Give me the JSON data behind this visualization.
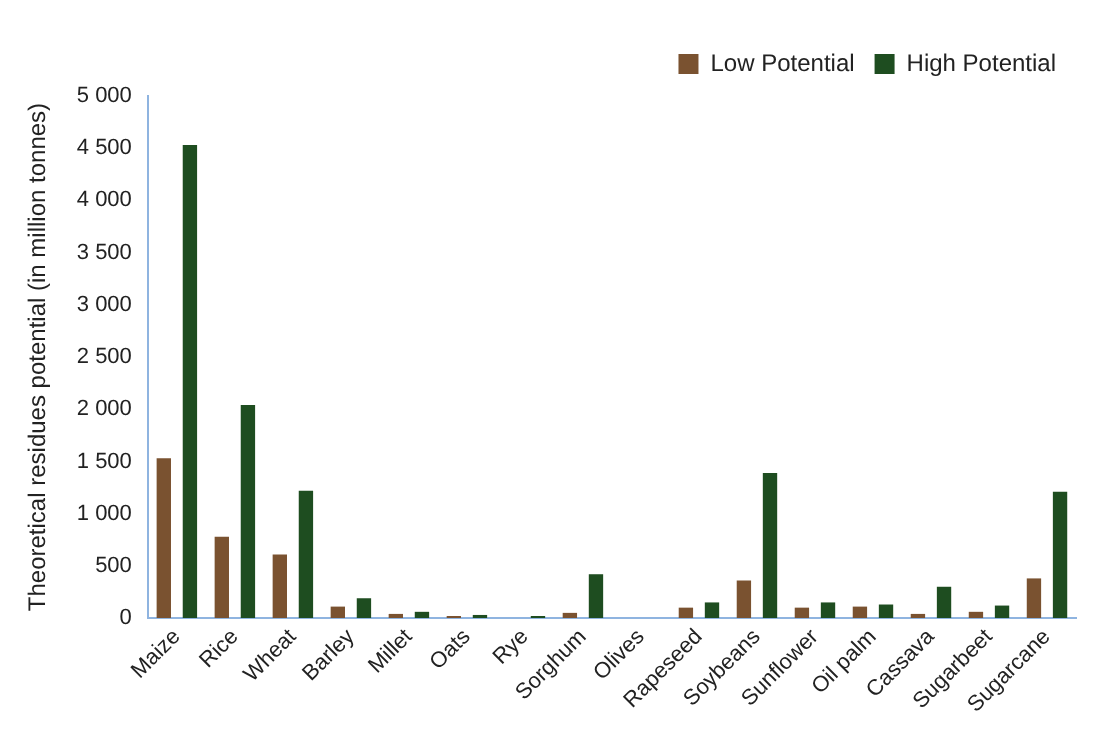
{
  "chart_data": {
    "type": "bar",
    "ylabel": "Theoretical residues potential (in million tonnes)",
    "categories": [
      "Maize",
      "Rice",
      "Wheat",
      "Barley",
      "Millet",
      "Oats",
      "Rye",
      "Sorghum",
      "Olives",
      "Rapeseed",
      "Soybeans",
      "Sunflower",
      "Oil palm",
      "Cassava",
      "Sugarbeet",
      "Sugarcane"
    ],
    "series": [
      {
        "name": "Low Potential",
        "color": "#7a5230",
        "values": [
          1530,
          780,
          610,
          110,
          40,
          20,
          null,
          50,
          0,
          100,
          360,
          100,
          110,
          40,
          60,
          380
        ]
      },
      {
        "name": "High Potential",
        "color": "#1e4d20",
        "values": [
          4530,
          2040,
          1220,
          190,
          60,
          30,
          20,
          420,
          0,
          150,
          1390,
          150,
          130,
          300,
          120,
          1210
        ]
      }
    ],
    "ylim": [
      0,
      5000
    ],
    "yticks": [
      0,
      {
        "value": 500,
        "label": "500"
      },
      {
        "value": 1000,
        "label": "1 000"
      },
      {
        "value": 1500,
        "label": "1 500"
      },
      {
        "value": 2000,
        "label": "2 000"
      },
      {
        "value": 2500,
        "label": "2 500"
      },
      {
        "value": 3000,
        "label": "3 000"
      },
      {
        "value": 3500,
        "label": "3 500"
      },
      {
        "value": 4000,
        "label": "4 000"
      },
      {
        "value": 4500,
        "label": "4 500"
      },
      {
        "value": 5000,
        "label": "5 000"
      }
    ],
    "grid": false,
    "legend": "top right"
  }
}
